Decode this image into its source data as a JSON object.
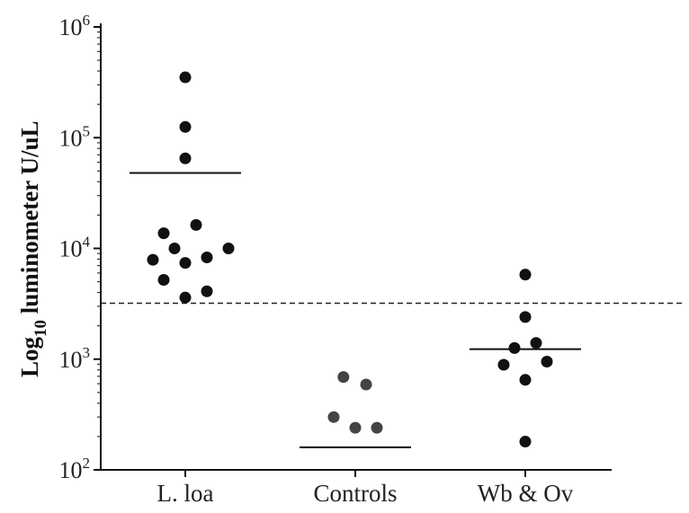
{
  "chart_data": {
    "type": "scatter",
    "title": "",
    "xlabel": "",
    "ylabel": {
      "prefix": "Log",
      "subscript": "10",
      "rest": " luminometer U/uL"
    },
    "yscale": "log",
    "ylim": [
      100,
      1000000
    ],
    "yticks": [
      {
        "base": "10",
        "exp": "2",
        "value": 100
      },
      {
        "base": "10",
        "exp": "3",
        "value": 1000
      },
      {
        "base": "10",
        "exp": "4",
        "value": 10000
      },
      {
        "base": "10",
        "exp": "5",
        "value": 100000
      },
      {
        "base": "10",
        "exp": "6",
        "value": 1000000
      }
    ],
    "categories": [
      "L. loa",
      "Controls",
      "Wb & Ov"
    ],
    "cutoff": 3200,
    "series": [
      {
        "name": "L. loa",
        "color": "#111111",
        "median": 48000,
        "points": [
          {
            "offset": 0,
            "value": 351000
          },
          {
            "offset": 0,
            "value": 125000
          },
          {
            "offset": 0,
            "value": 65000
          },
          {
            "offset": 0.5,
            "value": 16300
          },
          {
            "offset": -1,
            "value": 13700
          },
          {
            "offset": -0.5,
            "value": 10000
          },
          {
            "offset": 2,
            "value": 10000
          },
          {
            "offset": -1.5,
            "value": 7900
          },
          {
            "offset": 0,
            "value": 7400
          },
          {
            "offset": 1,
            "value": 8300
          },
          {
            "offset": -1,
            "value": 5200
          },
          {
            "offset": 1,
            "value": 4100
          },
          {
            "offset": 0,
            "value": 3600
          }
        ]
      },
      {
        "name": "Controls",
        "color": "#444444",
        "median": 160,
        "points": [
          {
            "offset": -0.55,
            "value": 690
          },
          {
            "offset": 0.5,
            "value": 590
          },
          {
            "offset": -1,
            "value": 300
          },
          {
            "offset": 0,
            "value": 240
          },
          {
            "offset": 1,
            "value": 240
          }
        ]
      },
      {
        "name": "Wb & Ov",
        "color": "#111111",
        "median": 1230,
        "points": [
          {
            "offset": 0,
            "value": 5800
          },
          {
            "offset": 0,
            "value": 2400
          },
          {
            "offset": -0.5,
            "value": 1260
          },
          {
            "offset": 0.5,
            "value": 1400
          },
          {
            "offset": -1,
            "value": 890
          },
          {
            "offset": 1,
            "value": 950
          },
          {
            "offset": 0,
            "value": 650
          },
          {
            "offset": 0,
            "value": 180
          }
        ]
      }
    ]
  }
}
